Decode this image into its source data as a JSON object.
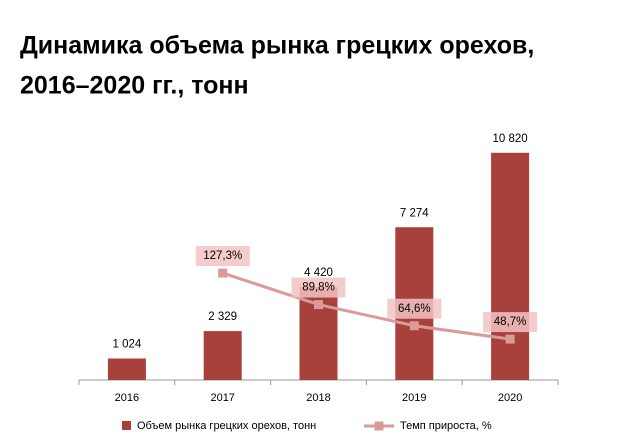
{
  "chart_data": {
    "type": "bar-line",
    "title": [
      "Динамика объема рынка грецких орехов,",
      "2016–2020 гг., тонн"
    ],
    "categories": [
      "2016",
      "2017",
      "2018",
      "2019",
      "2020"
    ],
    "ylim": [
      0,
      12000
    ],
    "y2lim": [
      0,
      300
    ],
    "series": [
      {
        "name": "Объем рынка грецких орехов, тонн",
        "type": "bar",
        "color": "#a8403c",
        "values": [
          1024,
          2329,
          4420,
          7274,
          10820
        ],
        "value_labels": [
          "1 024",
          "2 329",
          "4 420",
          "7 274",
          "10 820"
        ]
      },
      {
        "name": "Темп прироста, %",
        "type": "line",
        "axis": "y2",
        "color": "#d99a99",
        "label_color": "#f2c3c2",
        "values": [
          null,
          127.3,
          89.8,
          64.6,
          48.7
        ],
        "value_labels": [
          null,
          "127,3%",
          "89,8%",
          "64,6%",
          "48,7%"
        ]
      }
    ]
  }
}
